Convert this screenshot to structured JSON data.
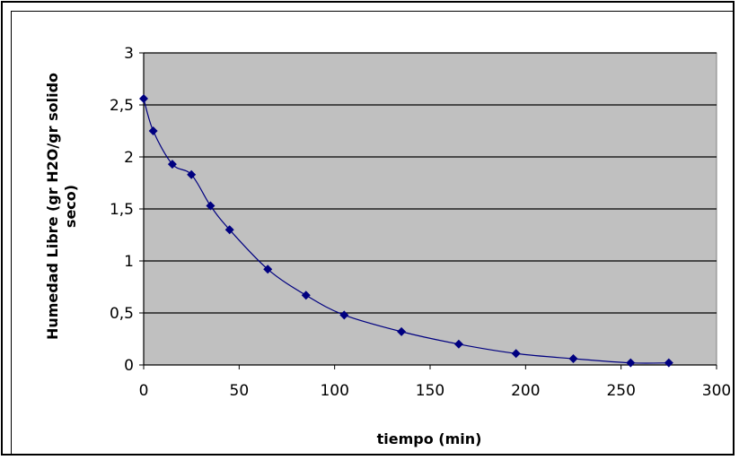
{
  "chart_data": {
    "type": "scatter",
    "title": "",
    "xlabel": "tiempo (min)",
    "ylabel_lines": [
      "Humedad Libre (gr H2O/gr solido",
      "seco)"
    ],
    "xlim": [
      0,
      300
    ],
    "ylim": [
      0,
      3
    ],
    "x_ticks": [
      0,
      50,
      100,
      150,
      200,
      250,
      300
    ],
    "y_ticks": [
      0,
      0.5,
      1,
      1.5,
      2,
      2.5,
      3
    ],
    "x_tick_labels": [
      "0",
      "50",
      "100",
      "150",
      "200",
      "250",
      "300"
    ],
    "y_tick_labels": [
      "0",
      "0,5",
      "1",
      "1,5",
      "2",
      "2,5",
      "3"
    ],
    "grid": "horizontal",
    "legend": "none",
    "series": [
      {
        "x": [
          0,
          5,
          15,
          25,
          35,
          45,
          65,
          85,
          105,
          135,
          165,
          195,
          225,
          255,
          275
        ],
        "y": [
          2.56,
          2.25,
          1.93,
          1.83,
          1.53,
          1.3,
          0.92,
          0.67,
          0.48,
          0.32,
          0.2,
          0.11,
          0.06,
          0.02,
          0.02
        ]
      }
    ],
    "colors": {
      "plot_bg": "#c0c0c0",
      "series": "#000080",
      "grid": "#000000"
    }
  }
}
